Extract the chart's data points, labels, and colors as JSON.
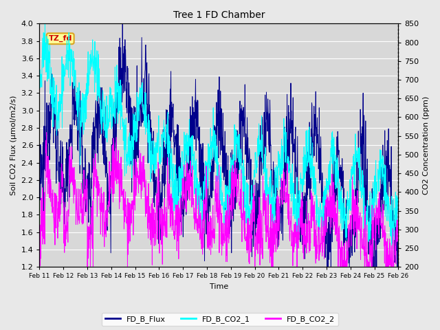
{
  "title": "Tree 1 FD Chamber",
  "xlabel": "Time",
  "ylabel_left": "Soil CO2 Flux (μmol/m2/s)",
  "ylabel_right": "CO2 Concentration (ppm)",
  "ylim_left": [
    1.2,
    4.0
  ],
  "ylim_right": [
    200,
    850
  ],
  "xtick_labels": [
    "Feb 11",
    "Feb 12",
    "Feb 13",
    "Feb 14",
    "Feb 15",
    "Feb 16",
    "Feb 17",
    "Feb 18",
    "Feb 19",
    "Feb 20",
    "Feb 21",
    "Feb 22",
    "Feb 23",
    "Feb 24",
    "Feb 25",
    "Feb 26"
  ],
  "flux_color": "#00008B",
  "co2_1_color": "#00FFFF",
  "co2_2_color": "#FF00FF",
  "annotation_text": "TZ_fd",
  "annotation_bg": "#FFFF99",
  "annotation_border": "#DAA520",
  "annotation_text_color": "#CC0000",
  "legend_labels": [
    "FD_B_Flux",
    "FD_B_CO2_1",
    "FD_B_CO2_2"
  ],
  "background_color": "#E8E8E8",
  "plot_bg_color": "#D8D8D8",
  "grid_color": "#FFFFFF",
  "right_yticks": [
    200,
    250,
    300,
    350,
    400,
    450,
    500,
    550,
    600,
    650,
    700,
    750,
    800,
    850
  ],
  "left_yticks": [
    1.2,
    1.4,
    1.6,
    1.8,
    2.0,
    2.2,
    2.4,
    2.6,
    2.8,
    3.0,
    3.2,
    3.4,
    3.6,
    3.8,
    4.0
  ]
}
